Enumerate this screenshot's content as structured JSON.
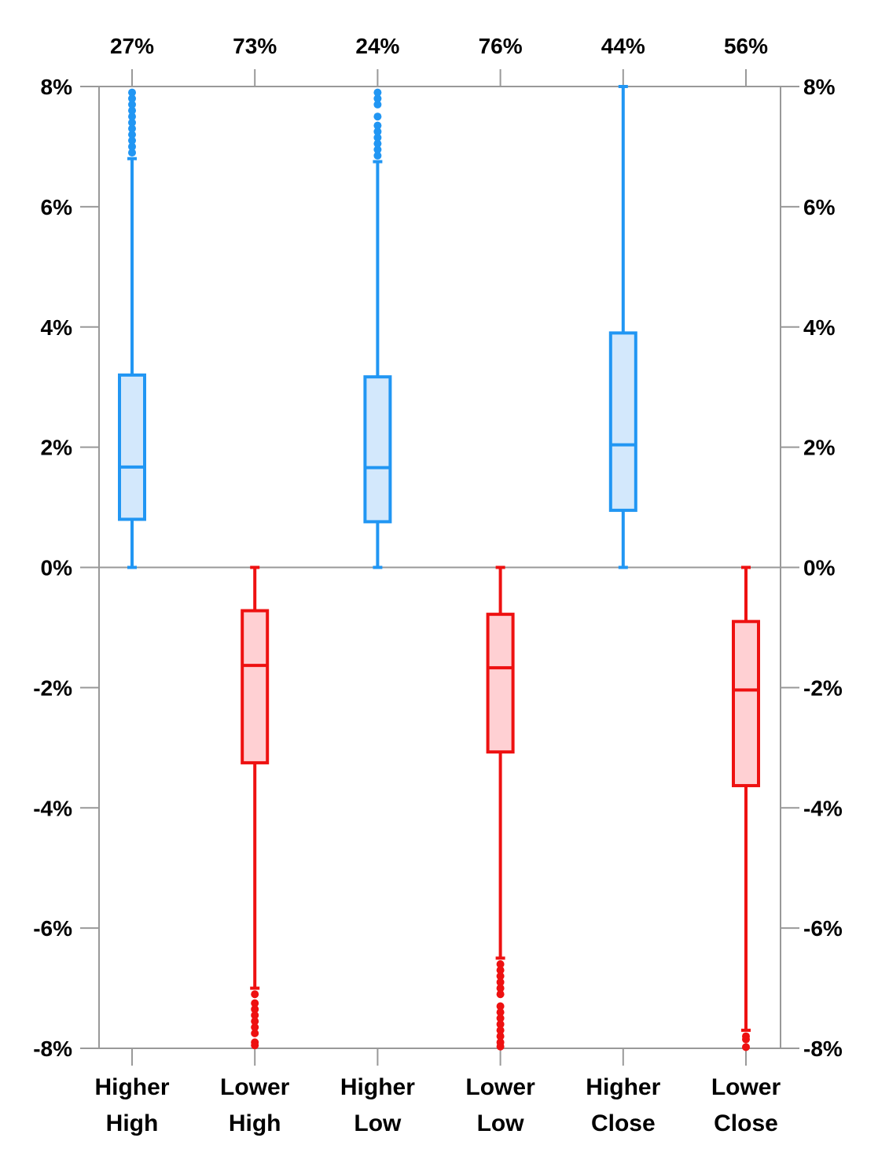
{
  "chart_data": {
    "type": "box",
    "ylim": [
      -8,
      8
    ],
    "y_ticks": [
      {
        "value": 8,
        "label": "8%"
      },
      {
        "value": 6,
        "label": "6%"
      },
      {
        "value": 4,
        "label": "4%"
      },
      {
        "value": 2,
        "label": "2%"
      },
      {
        "value": 0,
        "label": "0%"
      },
      {
        "value": -2,
        "label": "-2%"
      },
      {
        "value": -4,
        "label": "-4%"
      },
      {
        "value": -6,
        "label": "-6%"
      },
      {
        "value": -8,
        "label": "-8%"
      }
    ],
    "grid": false,
    "right_axis_mirrored": true,
    "colors": {
      "up_stroke": "#2196F3",
      "up_fill": "#D3E8FC",
      "down_stroke": "#EE1111",
      "down_fill": "#FFD0D3",
      "axis": "#999999"
    },
    "categories": [
      {
        "line1": "Higher",
        "line2": "High",
        "share": "27%",
        "direction": "up",
        "whisker_low": 0,
        "q1": 0.8,
        "median": 1.67,
        "q3": 3.2,
        "whisker_high": 6.8,
        "outliers": [
          6.9,
          7.0,
          7.1,
          7.2,
          7.3,
          7.4,
          7.5,
          7.6,
          7.7,
          7.8,
          7.9
        ]
      },
      {
        "line1": "Lower",
        "line2": "High",
        "share": "73%",
        "direction": "down",
        "whisker_low": -7.0,
        "q1": -3.25,
        "median": -1.63,
        "q3": -0.72,
        "whisker_high": 0,
        "outliers": [
          -7.1,
          -7.25,
          -7.35,
          -7.45,
          -7.55,
          -7.65,
          -7.75,
          -7.9,
          -7.95
        ]
      },
      {
        "line1": "Higher",
        "line2": "Low",
        "share": "24%",
        "direction": "up",
        "whisker_low": 0,
        "q1": 0.76,
        "median": 1.66,
        "q3": 3.17,
        "whisker_high": 6.75,
        "outliers": [
          6.85,
          6.95,
          7.05,
          7.15,
          7.25,
          7.35,
          7.5,
          7.7,
          7.8,
          7.9
        ]
      },
      {
        "line1": "Lower",
        "line2": "Low",
        "share": "76%",
        "direction": "down",
        "whisker_low": -6.5,
        "q1": -3.07,
        "median": -1.67,
        "q3": -0.78,
        "whisker_high": 0,
        "outliers": [
          -6.6,
          -6.7,
          -6.8,
          -6.9,
          -7.0,
          -7.1,
          -7.3,
          -7.4,
          -7.5,
          -7.6,
          -7.7,
          -7.8,
          -7.9,
          -7.97
        ]
      },
      {
        "line1": "Higher",
        "line2": "Close",
        "share": "44%",
        "direction": "up",
        "whisker_low": 0,
        "q1": 0.95,
        "median": 2.04,
        "q3": 3.9,
        "whisker_high": 8,
        "outliers": []
      },
      {
        "line1": "Lower",
        "line2": "Close",
        "share": "56%",
        "direction": "down",
        "whisker_low": -7.7,
        "q1": -3.63,
        "median": -2.04,
        "q3": -0.9,
        "whisker_high": 0,
        "outliers": [
          -7.8,
          -7.85,
          -7.98
        ]
      }
    ]
  }
}
